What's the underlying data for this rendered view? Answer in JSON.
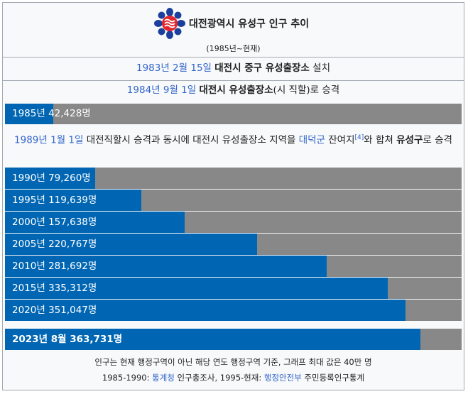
{
  "title": "대전광역시 유성구 인구 추이",
  "subtitle": "(1985년~현재)",
  "events": {
    "e1983": {
      "date": "1983년 2월 15일",
      "bold": "대전시 중구 유성출장소",
      "rest": " 설치"
    },
    "e1984": {
      "date": "1984년 9월 1일",
      "bold": "대전시 유성출장소",
      "rest": "(시 직할)로 승격"
    },
    "e1989": {
      "date": "1989년 1월 1일",
      "pre": " 대전직할시 승격과 동시에 대전시 유성출장소 지역을 ",
      "link": "대덕군",
      "mid": " 잔여지",
      "ref": "[4]",
      "post": "와 합쳐 ",
      "bold": "유성구",
      "end": "로 승격"
    }
  },
  "colors": {
    "bar": "#0066b3",
    "track": "#888888",
    "link": "#3366cc"
  },
  "chart_data": {
    "type": "bar",
    "orientation": "horizontal",
    "xlim": [
      0,
      400000
    ],
    "categories": [
      "1985년",
      "1990년",
      "1995년",
      "2000년",
      "2005년",
      "2010년",
      "2015년",
      "2020년",
      "2023년 8월"
    ],
    "values": [
      42428,
      79260,
      119639,
      157638,
      220767,
      281692,
      335312,
      351047,
      363731
    ],
    "labels": [
      "1985년 42,428명",
      "1990년 79,260명",
      "1995년 119,639명",
      "2000년 157,638명",
      "2005년 220,767명",
      "2010년 281,692명",
      "2015년 335,312명",
      "2020년 351,047명",
      "2023년 8월 363,731명"
    ]
  },
  "footer": {
    "note": "인구는 현재 행정구역이 아닌 해당 연도 행정구역 기준, 그래프 최대 값은 40만 명",
    "src1_prefix": "1985-1990: ",
    "src1_link": "통계청",
    "src1_suffix": " 인구총조사, 1995-현재: ",
    "src2_link": "행정안전부",
    "src2_suffix": " 주민등록인구통계"
  }
}
